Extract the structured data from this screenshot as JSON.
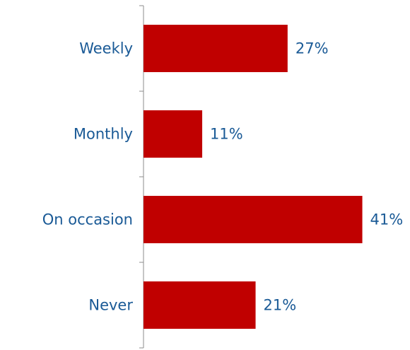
{
  "chart_data": {
    "type": "bar",
    "orientation": "horizontal",
    "categories": [
      "Weekly",
      "Monthly",
      "On occasion",
      "Never"
    ],
    "values": [
      27,
      11,
      41,
      21
    ],
    "value_labels": [
      "27%",
      "11%",
      "41%",
      "21%"
    ],
    "color": "#c00000"
  }
}
